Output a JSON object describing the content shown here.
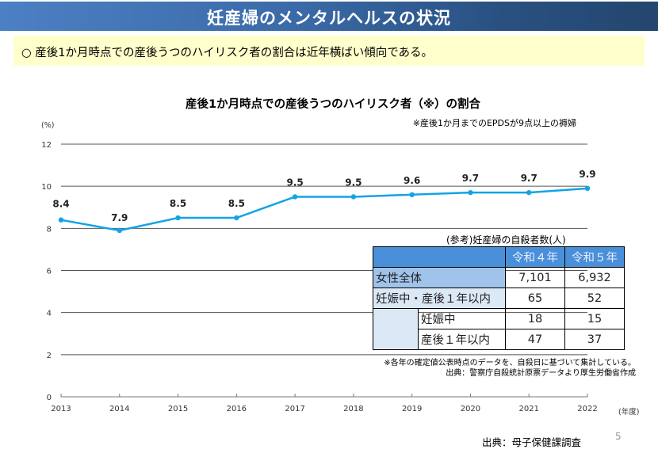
{
  "header": {
    "title": "妊産婦のメンタルヘルスの状況"
  },
  "summary": {
    "text": "○ 産後1か月時点での産後うつのハイリスク者の割合は近年横ばい傾向である。"
  },
  "chart_data": {
    "type": "line",
    "title": "産後1か月時点での産後うつのハイリスク者（※）の割合",
    "note": "※産後1か月までのEPDSが9点以上の褥婦",
    "ylabel": "(%)",
    "xlabel": "(年度)",
    "ylim": [
      0,
      12
    ],
    "yticks": [
      0,
      2,
      4,
      6,
      8,
      10,
      12
    ],
    "grid": true,
    "x": [
      "2013",
      "2014",
      "2015",
      "2016",
      "2017",
      "2018",
      "2019",
      "2020",
      "2021",
      "2022"
    ],
    "series": [
      {
        "name": "産後うつハイリスク者の割合",
        "values": [
          8.4,
          7.9,
          8.5,
          8.5,
          9.5,
          9.5,
          9.6,
          9.7,
          9.7,
          9.9
        ],
        "color": "#12a4e4"
      }
    ]
  },
  "reference_table": {
    "title": "(参考)妊産婦の自殺者数(人)",
    "columns": [
      "令和４年",
      "令和５年"
    ],
    "rows": [
      {
        "label": "女性全体",
        "values": [
          "7,101",
          "6,932"
        ]
      },
      {
        "label": "妊娠中・産後１年以内",
        "values": [
          "65",
          "52"
        ]
      },
      {
        "label": "妊娠中",
        "values": [
          "18",
          "15"
        ]
      },
      {
        "label": "産後１年以内",
        "values": [
          "47",
          "37"
        ]
      }
    ],
    "note1": "※各年の確定値公表時点のデータを、自殺日に基づいて集計している。",
    "note2": "出典：警察庁自殺統計原票データより厚生労働省作成"
  },
  "footer": {
    "source": "出典：母子保健課調査",
    "page": "5"
  }
}
